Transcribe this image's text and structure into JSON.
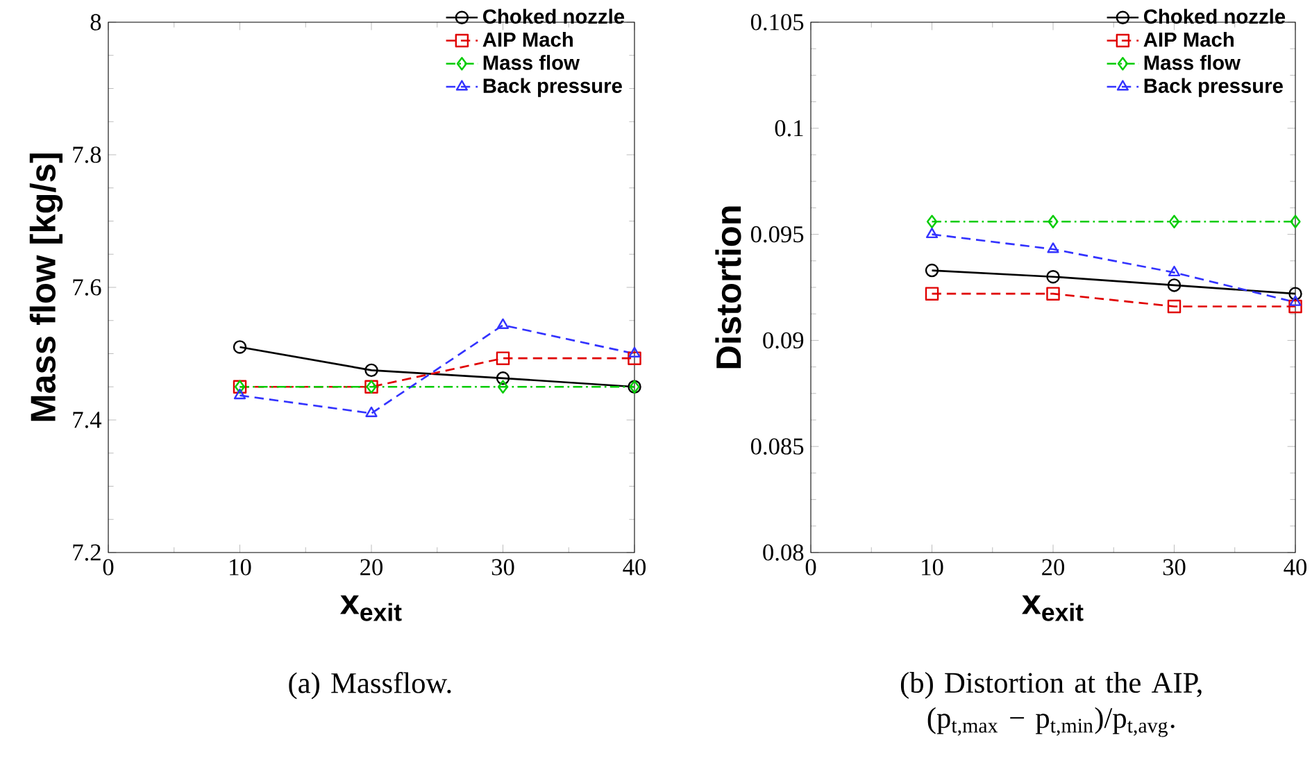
{
  "chart_data": [
    {
      "type": "line",
      "xlabel": "x$_{exit}$",
      "ylabel": "Mass flow [kg/s]",
      "x": [
        10,
        20,
        30,
        40
      ],
      "xlim": [
        0,
        40
      ],
      "xticks": [
        0,
        10,
        20,
        30,
        40
      ],
      "ylim": [
        7.2,
        8
      ],
      "yticks": [
        7.2,
        7.4,
        7.6,
        7.8,
        8
      ],
      "legend": "top right",
      "series": [
        {
          "name": "Choked nozzle",
          "color": "#000000",
          "marker": "circle",
          "line_style": "solid",
          "values": [
            7.51,
            7.475,
            7.463,
            7.45
          ]
        },
        {
          "name": "AIP Mach",
          "color": "#e00000",
          "marker": "square",
          "line_style": "dashed",
          "values": [
            7.45,
            7.45,
            7.493,
            7.493
          ]
        },
        {
          "name": "Mass flow",
          "color": "#00cc00",
          "marker": "diamond",
          "line_style": "dashdot",
          "values": [
            7.45,
            7.45,
            7.45,
            7.45
          ]
        },
        {
          "name": "Back pressure",
          "color": "#3333ff",
          "marker": "triangle",
          "line_style": "dashed",
          "values": [
            7.437,
            7.41,
            7.543,
            7.5
          ]
        }
      ],
      "annotations": [
        "(a) Massflow."
      ]
    },
    {
      "type": "line",
      "xlabel": "x$_{exit}$",
      "ylabel": "Distortion",
      "x": [
        10,
        20,
        30,
        40
      ],
      "xlim": [
        0,
        40
      ],
      "xticks": [
        0,
        10,
        20,
        30,
        40
      ],
      "ylim": [
        0.08,
        0.105
      ],
      "yticks": [
        0.08,
        0.085,
        0.09,
        0.095,
        0.1,
        0.105
      ],
      "legend": "top right",
      "series": [
        {
          "name": "Choked nozzle",
          "color": "#000000",
          "marker": "circle",
          "line_style": "solid",
          "values": [
            0.0933,
            0.093,
            0.0926,
            0.0922
          ]
        },
        {
          "name": "AIP Mach",
          "color": "#e00000",
          "marker": "square",
          "line_style": "dashed",
          "values": [
            0.0922,
            0.0922,
            0.0916,
            0.0916
          ]
        },
        {
          "name": "Mass flow",
          "color": "#00cc00",
          "marker": "diamond",
          "line_style": "dashdot",
          "values": [
            0.0956,
            0.0956,
            0.0956,
            0.0956
          ]
        },
        {
          "name": "Back pressure",
          "color": "#3333ff",
          "marker": "triangle",
          "line_style": "dashed",
          "values": [
            0.095,
            0.0943,
            0.0932,
            0.0918
          ]
        }
      ],
      "annotations": [
        "(b) Distortion at the AIP, (p$_{t,max}$ − p$_{t,min}$)/p$_{t,avg}$."
      ]
    }
  ]
}
